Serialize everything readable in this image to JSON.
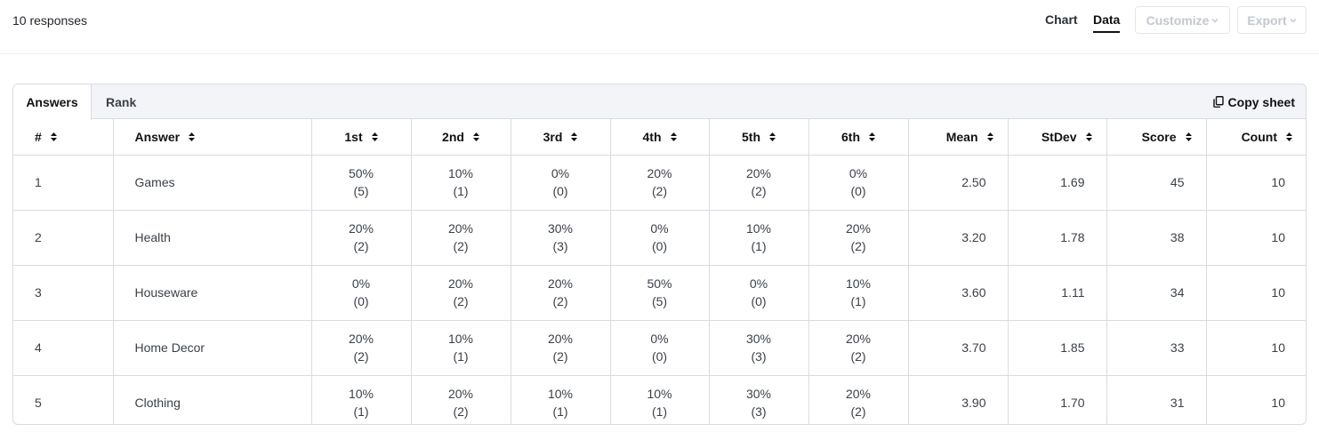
{
  "header": {
    "responses_label": "10 responses",
    "view_chart": "Chart",
    "view_data": "Data",
    "customize_label": "Customize",
    "export_label": "Export"
  },
  "panel": {
    "tab_answers": "Answers",
    "tab_rank": "Rank",
    "copy_sheet": "Copy sheet"
  },
  "table": {
    "headers": [
      "#",
      "Answer",
      "1st",
      "2nd",
      "3rd",
      "4th",
      "5th",
      "6th",
      "Mean",
      "StDev",
      "Score",
      "Count"
    ],
    "rows": [
      {
        "num": "1",
        "answer": "Games",
        "ranks": [
          [
            "50%",
            "(5)"
          ],
          [
            "10%",
            "(1)"
          ],
          [
            "0%",
            "(0)"
          ],
          [
            "20%",
            "(2)"
          ],
          [
            "20%",
            "(2)"
          ],
          [
            "0%",
            "(0)"
          ]
        ],
        "mean": "2.50",
        "stdev": "1.69",
        "score": "45",
        "count": "10"
      },
      {
        "num": "2",
        "answer": "Health",
        "ranks": [
          [
            "20%",
            "(2)"
          ],
          [
            "20%",
            "(2)"
          ],
          [
            "30%",
            "(3)"
          ],
          [
            "0%",
            "(0)"
          ],
          [
            "10%",
            "(1)"
          ],
          [
            "20%",
            "(2)"
          ]
        ],
        "mean": "3.20",
        "stdev": "1.78",
        "score": "38",
        "count": "10"
      },
      {
        "num": "3",
        "answer": "Houseware",
        "ranks": [
          [
            "0%",
            "(0)"
          ],
          [
            "20%",
            "(2)"
          ],
          [
            "20%",
            "(2)"
          ],
          [
            "50%",
            "(5)"
          ],
          [
            "0%",
            "(0)"
          ],
          [
            "10%",
            "(1)"
          ]
        ],
        "mean": "3.60",
        "stdev": "1.11",
        "score": "34",
        "count": "10"
      },
      {
        "num": "4",
        "answer": "Home Decor",
        "ranks": [
          [
            "20%",
            "(2)"
          ],
          [
            "10%",
            "(1)"
          ],
          [
            "20%",
            "(2)"
          ],
          [
            "0%",
            "(0)"
          ],
          [
            "30%",
            "(3)"
          ],
          [
            "20%",
            "(2)"
          ]
        ],
        "mean": "3.70",
        "stdev": "1.85",
        "score": "33",
        "count": "10"
      },
      {
        "num": "5",
        "answer": "Clothing",
        "ranks": [
          [
            "10%",
            "(1)"
          ],
          [
            "20%",
            "(2)"
          ],
          [
            "10%",
            "(1)"
          ],
          [
            "10%",
            "(1)"
          ],
          [
            "30%",
            "(3)"
          ],
          [
            "20%",
            "(2)"
          ]
        ],
        "mean": "3.90",
        "stdev": "1.70",
        "score": "31",
        "count": "10"
      }
    ]
  },
  "colors": {
    "accent_text": "#111111",
    "disabled_text": "#c3c7cf",
    "border": "#d8dbe1",
    "tab_bar_bg": "#f3f4f7"
  },
  "icons": {
    "sort": "sort-icon",
    "copy": "copy-icon",
    "chevron": "chevron-down-icon"
  }
}
